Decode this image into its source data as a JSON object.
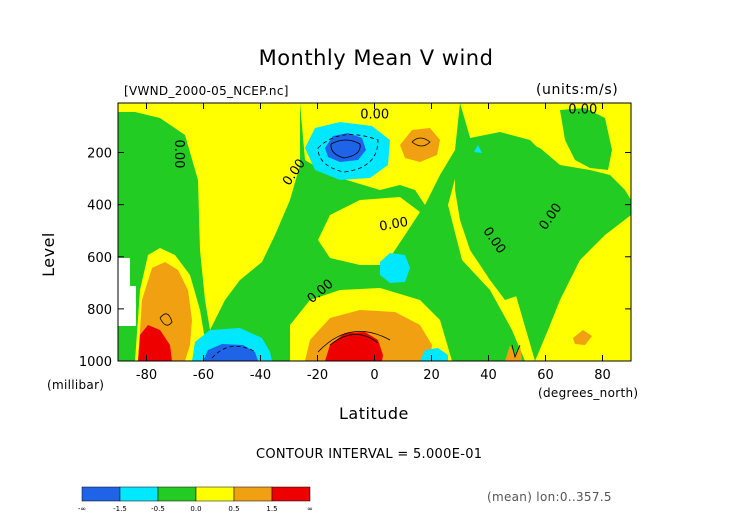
{
  "chart_data": {
    "type": "contour",
    "title": "Monthly Mean V wind",
    "subtitle_left": "[VWND_2000-05_NCEP.nc]",
    "subtitle_right": "(units:m/s)",
    "xlabel": "Latitude",
    "x_unit": "(degrees_north)",
    "ylabel": "Level",
    "y_unit": "(millibar)",
    "xlim": [
      -90,
      90
    ],
    "ylim": [
      1000,
      10
    ],
    "x_ticks": [
      "-80",
      "-60",
      "-40",
      "-20",
      "0",
      "20",
      "40",
      "60",
      "80"
    ],
    "x_tick_values": [
      -80,
      -60,
      -40,
      -20,
      0,
      20,
      40,
      60,
      80
    ],
    "y_ticks": [
      "200",
      "400",
      "600",
      "800",
      "1000"
    ],
    "y_tick_values": [
      200,
      400,
      600,
      800,
      1000
    ],
    "contour_interval_text": "CONTOUR INTERVAL = 5.000E-01",
    "contour_label": "0.00",
    "colorbar": {
      "labels": [
        "-∞",
        "-1.5",
        "-0.5",
        "0.0",
        "0.5",
        "1.5",
        "∞"
      ],
      "colors": [
        "#1f64e8",
        "#00e8ff",
        "#22cc22",
        "#ffff00",
        "#f0a010",
        "#ee0000"
      ]
    },
    "footnote": "(mean) lon:0..357.5",
    "level_colors": {
      "strong_neg": "#1f64e8",
      "neg": "#00e8ff",
      "near_zero_neg": "#22cc22",
      "near_zero_pos": "#ffff00",
      "pos": "#f0a010",
      "strong_pos": "#ee0000"
    }
  }
}
